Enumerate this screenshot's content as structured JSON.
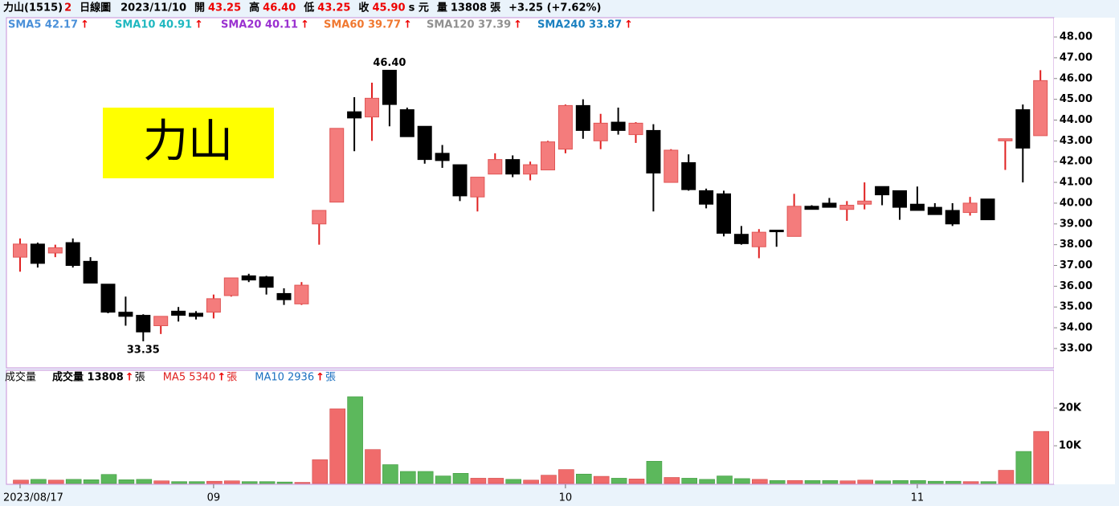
{
  "header": {
    "title": "力山(1515)",
    "badge": "2",
    "period": "日線圖",
    "date": "2023/11/10",
    "open_label": "開",
    "open": "43.25",
    "high_label": "高",
    "high": "46.40",
    "low_label": "低",
    "low": "43.25",
    "close_label": "收",
    "close": "45.90",
    "close_unit": "s 元",
    "volume_label": "量",
    "volume": "13808",
    "volume_unit": "張",
    "change": "+3.25 (+7.62%)"
  },
  "trend_symbol": "↑",
  "sma_legend": [
    {
      "label": "SMA5 42.17",
      "color": "#4a90d9"
    },
    {
      "label": "SMA10 40.91",
      "color": "#20b8c0"
    },
    {
      "label": "SMA20 40.11",
      "color": "#9a30d0"
    },
    {
      "label": "SMA60 39.77",
      "color": "#f07830"
    },
    {
      "label": "SMA120 37.39",
      "color": "#909090"
    },
    {
      "label": "SMA240 33.87",
      "color": "#1a80c0"
    }
  ],
  "volume_legend": {
    "title": "成交量",
    "unit": "張",
    "items": [
      {
        "label": "成交量 13808",
        "color": "#000000"
      },
      {
        "label": "MA5 5340",
        "color": "#e02020"
      },
      {
        "label": "MA10 2936",
        "color": "#1a70c0"
      }
    ]
  },
  "logo_text": "力山",
  "chart_data": [
    {
      "type": "candlestick",
      "up_color": "#f47c7c",
      "down_color": "#000000",
      "categories": [
        "2023/08/17",
        null,
        null,
        null,
        null,
        null,
        null,
        null,
        null,
        null,
        null,
        "09",
        null,
        null,
        null,
        null,
        null,
        null,
        null,
        null,
        null,
        null,
        null,
        null,
        null,
        null,
        null,
        null,
        null,
        null,
        null,
        "10",
        null,
        null,
        null,
        null,
        null,
        null,
        null,
        null,
        null,
        null,
        null,
        null,
        null,
        null,
        null,
        null,
        null,
        null,
        null,
        "11",
        null,
        null,
        null,
        null,
        null,
        null,
        null
      ],
      "open": [
        37.4,
        38.03,
        37.6,
        38.1,
        37.2,
        36.1,
        34.75,
        34.6,
        34.1,
        34.8,
        34.7,
        34.75,
        35.55,
        36.5,
        36.45,
        35.65,
        35.15,
        39.0,
        40.05,
        44.4,
        44.15,
        46.4,
        44.5,
        43.7,
        42.4,
        41.85,
        40.3,
        41.4,
        42.1,
        41.4,
        41.6,
        42.6,
        44.7,
        43.0,
        43.9,
        43.3,
        43.5,
        41.0,
        41.95,
        40.6,
        40.45,
        38.5,
        37.9,
        38.7,
        38.4,
        39.85,
        40.0,
        39.7,
        39.95,
        40.8,
        40.6,
        39.95,
        39.8,
        39.65,
        39.55,
        40.2,
        43.0,
        44.5,
        43.25
      ],
      "high": [
        38.3,
        38.1,
        38.0,
        38.3,
        37.4,
        36.1,
        35.5,
        34.65,
        34.55,
        35.0,
        34.8,
        35.6,
        36.4,
        36.6,
        36.5,
        35.9,
        36.2,
        39.65,
        43.6,
        45.1,
        45.8,
        46.4,
        44.6,
        43.7,
        42.8,
        41.85,
        41.25,
        42.4,
        42.3,
        42.0,
        43.0,
        44.75,
        45.0,
        44.3,
        44.6,
        43.9,
        43.8,
        42.6,
        42.35,
        40.7,
        40.6,
        38.9,
        38.75,
        38.7,
        40.45,
        39.9,
        40.25,
        40.1,
        41.0,
        40.8,
        40.6,
        40.8,
        40.0,
        40.0,
        40.3,
        40.2,
        43.1,
        44.75,
        46.4
      ],
      "low": [
        36.7,
        36.9,
        37.4,
        36.9,
        36.15,
        34.7,
        34.1,
        33.35,
        33.7,
        34.3,
        34.4,
        34.45,
        35.5,
        36.2,
        35.6,
        35.1,
        35.1,
        38.0,
        40.05,
        42.5,
        43.0,
        43.7,
        43.2,
        41.9,
        41.7,
        40.1,
        39.6,
        41.4,
        41.25,
        41.1,
        41.6,
        42.4,
        43.1,
        42.6,
        43.3,
        42.9,
        39.6,
        41.0,
        40.6,
        39.75,
        38.4,
        38.0,
        37.35,
        37.9,
        38.4,
        39.7,
        39.8,
        39.15,
        39.7,
        39.9,
        39.2,
        39.65,
        39.45,
        38.9,
        39.4,
        39.2,
        41.6,
        41.0,
        43.25
      ],
      "close": [
        38.03,
        37.1,
        37.85,
        37.0,
        36.15,
        34.75,
        34.55,
        33.8,
        34.55,
        34.6,
        34.55,
        35.4,
        36.4,
        36.3,
        35.95,
        35.35,
        36.05,
        39.65,
        43.6,
        44.1,
        45.05,
        44.75,
        43.2,
        42.1,
        42.05,
        40.35,
        41.25,
        42.1,
        41.4,
        41.85,
        42.95,
        44.7,
        43.5,
        43.85,
        43.5,
        43.85,
        41.45,
        42.55,
        40.65,
        39.95,
        38.55,
        38.05,
        38.6,
        38.65,
        39.85,
        39.7,
        39.8,
        39.9,
        40.1,
        40.4,
        39.8,
        39.65,
        39.45,
        39.0,
        40.0,
        39.2,
        43.1,
        42.65,
        45.9
      ],
      "annotations": [
        {
          "text": "46.40",
          "index": 21,
          "value": 46.4
        },
        {
          "text": "33.35",
          "index": 7,
          "value": 33.35
        }
      ],
      "ylim": [
        32.07,
        48.93
      ],
      "yticks": [
        {
          "value": 33,
          "label": "33.00"
        },
        {
          "value": 34,
          "label": "34.00"
        },
        {
          "value": 35,
          "label": "35.00"
        },
        {
          "value": 36,
          "label": "36.00"
        },
        {
          "value": 37,
          "label": "37.00"
        },
        {
          "value": 38,
          "label": "38.00"
        },
        {
          "value": 39,
          "label": "39.00"
        },
        {
          "value": 40,
          "label": "40.00"
        },
        {
          "value": 41,
          "label": "41.00"
        },
        {
          "value": 42,
          "label": "42.00"
        },
        {
          "value": 43,
          "label": "43.00"
        },
        {
          "value": 44,
          "label": "44.00"
        },
        {
          "value": 45,
          "label": "45.00"
        },
        {
          "value": 46,
          "label": "46.00"
        },
        {
          "value": 47,
          "label": "47.00"
        },
        {
          "value": 48,
          "label": "48.00"
        }
      ]
    },
    {
      "type": "bar",
      "up_color": "#f06b6b",
      "down_color": "#5cb85c",
      "values": [
        900,
        1100,
        900,
        1100,
        1000,
        2400,
        1000,
        1100,
        700,
        500,
        500,
        600,
        700,
        500,
        500,
        400,
        300,
        6300,
        19800,
        23000,
        9000,
        5000,
        3200,
        3200,
        2000,
        2700,
        1400,
        1400,
        1100,
        900,
        2200,
        3700,
        2500,
        1900,
        1400,
        1200,
        5900,
        1600,
        1400,
        1100,
        2000,
        1300,
        1100,
        800,
        800,
        800,
        800,
        700,
        900,
        700,
        800,
        800,
        600,
        600,
        500,
        500,
        3500,
        8500,
        13808
      ],
      "ylim": [
        0,
        29800
      ],
      "yticks": [
        {
          "value": 10000,
          "label": "10K"
        },
        {
          "value": 20000,
          "label": "20K"
        }
      ]
    }
  ]
}
